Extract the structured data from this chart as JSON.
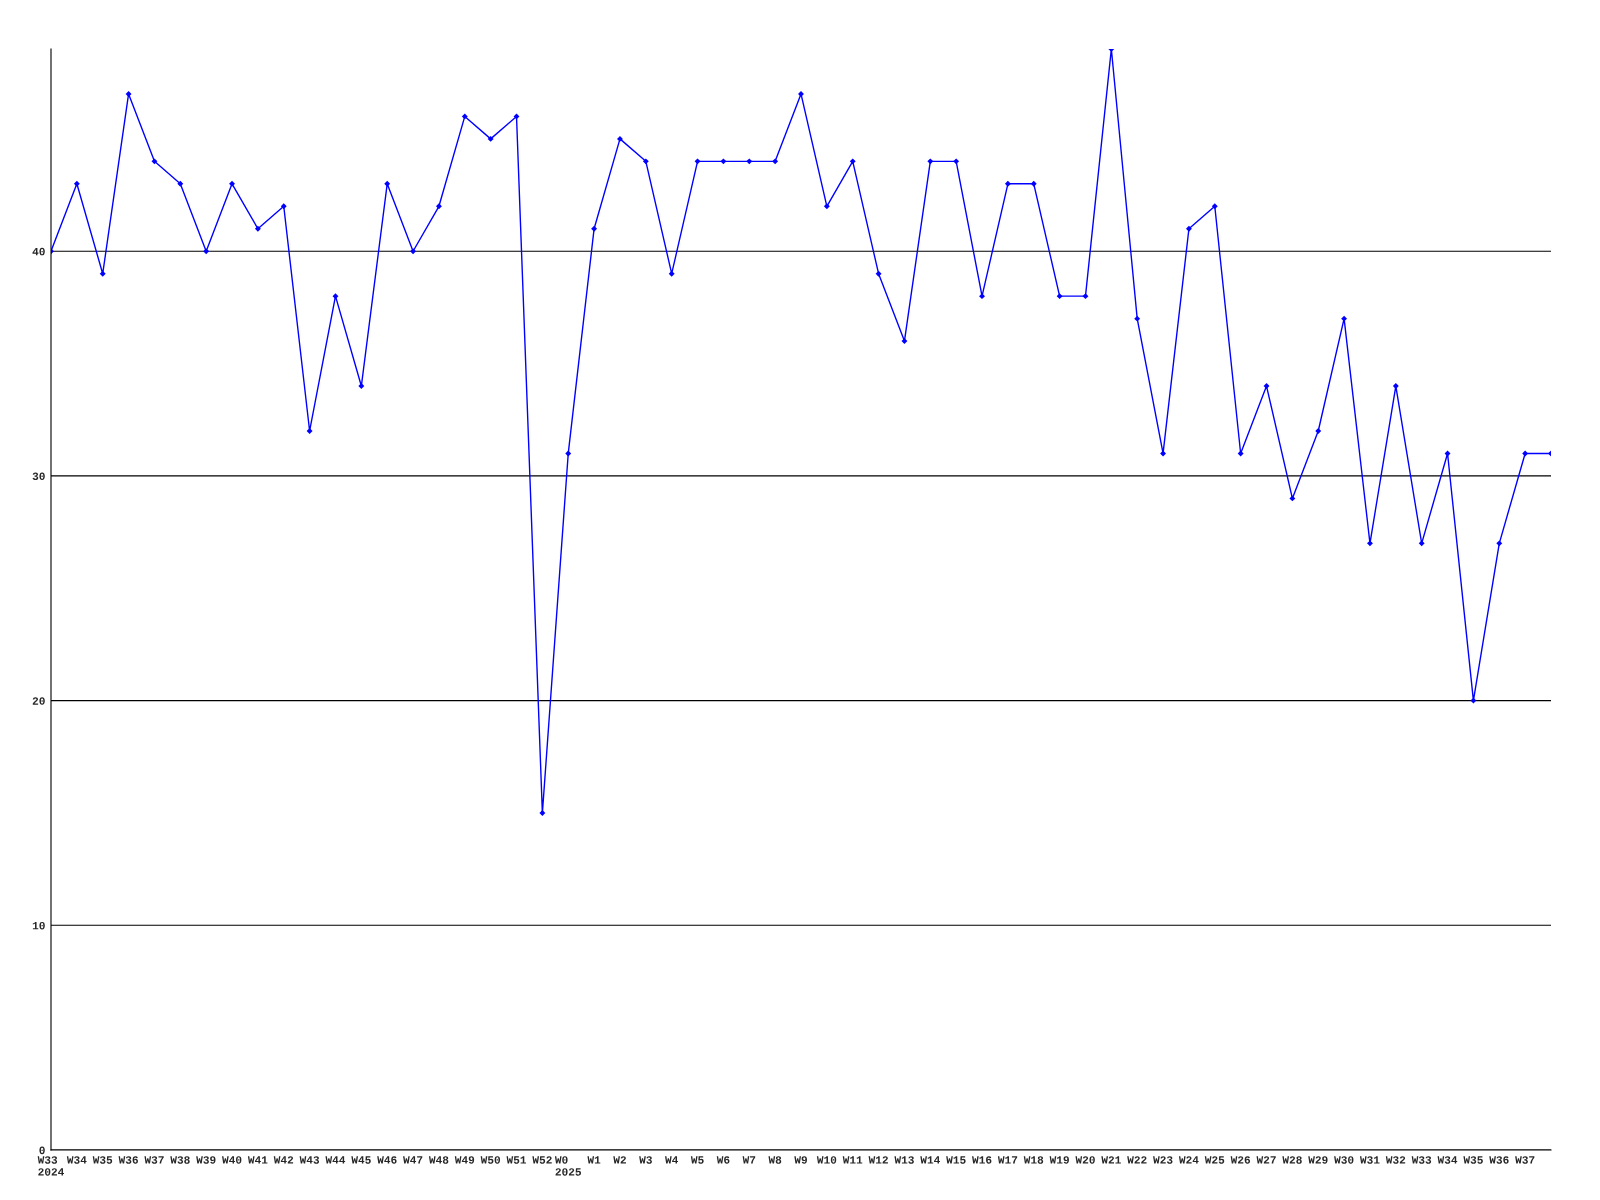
{
  "chart_data": {
    "type": "line",
    "categories": [
      "W33\n2024",
      "W34",
      "W35",
      "W36",
      "W37",
      "W38",
      "W39",
      "W40",
      "W41",
      "W42",
      "W43",
      "W44",
      "W45",
      "W46",
      "W47",
      "W48",
      "W49",
      "W50",
      "W51",
      "W52",
      "W0\n2025",
      "W1",
      "W2",
      "W3",
      "W4",
      "W5",
      "W6",
      "W7",
      "W8",
      "W9",
      "W10",
      "W11",
      "W12",
      "W13",
      "W14",
      "W15",
      "W16",
      "W17",
      "W18",
      "W19",
      "W20",
      "W21",
      "W22",
      "W23",
      "W24",
      "W25",
      "W26",
      "W27",
      "W28",
      "W29",
      "W30",
      "W31",
      "W32",
      "W33",
      "W34",
      "W35",
      "W36",
      "W37",
      null
    ],
    "series": [
      {
        "color": "#0000ff",
        "values": [
          40,
          43,
          39,
          47,
          44,
          43,
          40,
          43,
          41,
          42,
          32,
          38,
          34,
          43,
          40,
          42,
          46,
          45,
          46,
          15,
          31,
          41,
          45,
          44,
          39,
          44,
          44,
          44,
          44,
          47,
          42,
          44,
          39,
          36,
          44,
          44,
          38,
          43,
          43,
          38,
          38,
          49,
          37,
          31,
          41,
          42,
          31,
          34,
          29,
          32,
          37,
          27,
          34,
          27,
          31,
          20,
          27,
          31,
          31
        ]
      }
    ],
    "ylim": [
      0,
      49
    ],
    "yticks": [
      0,
      10,
      20,
      30,
      40
    ],
    "grid": "y",
    "marker": "diamond",
    "line_style": "solid"
  }
}
